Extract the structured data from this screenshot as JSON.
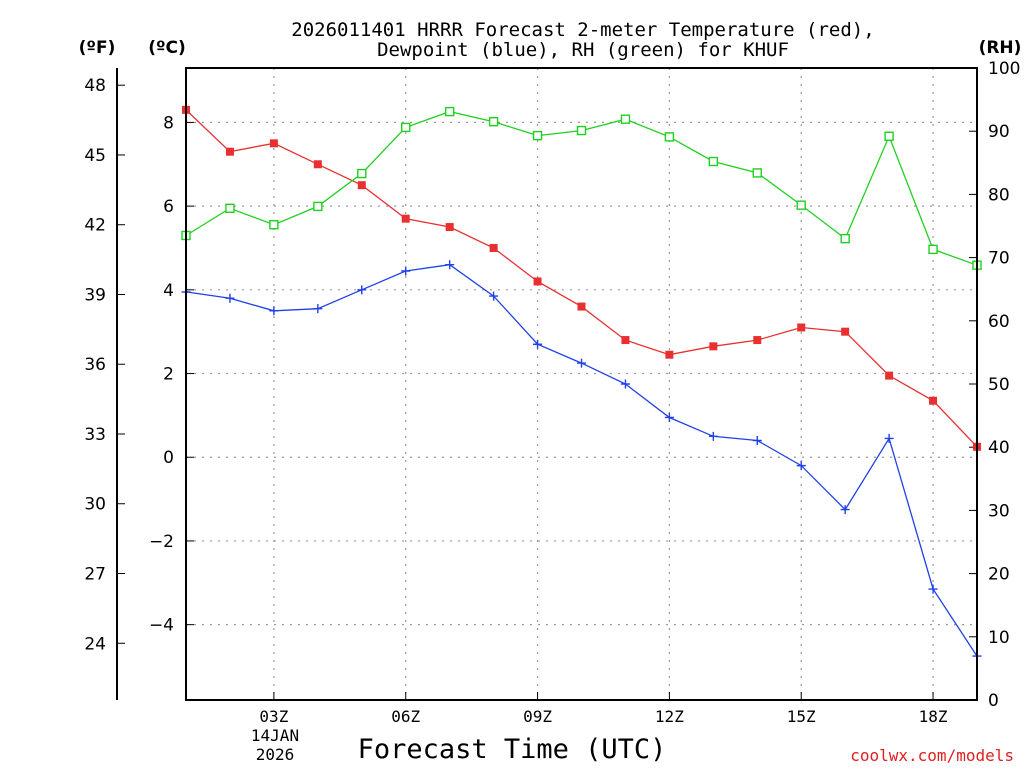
{
  "chart_data": {
    "type": "line",
    "title_line1": "2026011401 HRRR Forecast 2-meter Temperature (red),",
    "title_line2": "Dewpoint (blue), RH (green) for KHUF",
    "unit_f": "(ºF)",
    "unit_c": "(ºC)",
    "unit_rh": "(RH)",
    "xlabel": "Forecast Time (UTC)",
    "date_line1": "14JAN",
    "date_line2": "2026",
    "watermark": "coolwx.com/models",
    "x_range": [
      1,
      19
    ],
    "x_ticks": [
      {
        "h": 3,
        "label": "03Z"
      },
      {
        "h": 6,
        "label": "06Z"
      },
      {
        "h": 9,
        "label": "09Z"
      },
      {
        "h": 12,
        "label": "12Z"
      },
      {
        "h": 15,
        "label": "15Z"
      },
      {
        "h": 18,
        "label": "18Z"
      }
    ],
    "ylim_c": [
      -5.8,
      9.3
    ],
    "yticks_c": [
      8,
      6,
      4,
      2,
      0,
      -2,
      -4
    ],
    "yticks_c_labels": [
      "8",
      "6",
      "4",
      "2",
      "0",
      "−2",
      "−4"
    ],
    "yticks_f": [
      48,
      45,
      42,
      39,
      36,
      33,
      30,
      27,
      24
    ],
    "yticks_f_labels": [
      "48",
      "45",
      "42",
      "39",
      "36",
      "33",
      "30",
      "27",
      "24"
    ],
    "ylim_rh": [
      0,
      100
    ],
    "yticks_rh": [
      100,
      90,
      80,
      70,
      60,
      50,
      40,
      30,
      20,
      10,
      0
    ],
    "yticks_rh_labels": [
      "100",
      "90",
      "80",
      "70",
      "60",
      "50",
      "40",
      "30",
      "20",
      "10",
      "0"
    ],
    "series": [
      {
        "name": "Temperature",
        "axis": "c",
        "color": "#e83030",
        "marker": "filled-square",
        "x": [
          1,
          2,
          3,
          4,
          5,
          6,
          7,
          8,
          9,
          10,
          11,
          12,
          13,
          14,
          15,
          16,
          17,
          18,
          19
        ],
        "values": [
          8.3,
          7.3,
          7.5,
          7.0,
          6.5,
          5.7,
          5.5,
          5.0,
          4.2,
          3.6,
          2.8,
          2.45,
          2.65,
          2.8,
          3.1,
          3.0,
          1.95,
          1.35,
          0.25
        ]
      },
      {
        "name": "Dewpoint",
        "axis": "c",
        "color": "#2040e8",
        "marker": "plus",
        "x": [
          1,
          2,
          3,
          4,
          5,
          6,
          7,
          8,
          9,
          10,
          11,
          12,
          13,
          14,
          15,
          16,
          17,
          18,
          19
        ],
        "values": [
          3.95,
          3.8,
          3.5,
          3.55,
          4.0,
          4.45,
          4.6,
          3.85,
          2.7,
          2.25,
          1.75,
          0.95,
          0.5,
          0.4,
          -0.2,
          -1.25,
          0.45,
          -3.15,
          -4.75
        ]
      },
      {
        "name": "RH",
        "axis": "rh",
        "color": "#20d020",
        "marker": "open-square",
        "x": [
          1,
          2,
          3,
          4,
          5,
          6,
          7,
          8,
          9,
          10,
          11,
          12,
          13,
          14,
          15,
          16,
          17,
          18,
          19
        ],
        "values": [
          73.5,
          77.8,
          75.2,
          78.1,
          83.3,
          90.6,
          93.1,
          91.5,
          89.3,
          90.1,
          91.9,
          89.1,
          85.2,
          83.4,
          78.3,
          73.0,
          89.2,
          71.3,
          68.8
        ]
      }
    ]
  }
}
